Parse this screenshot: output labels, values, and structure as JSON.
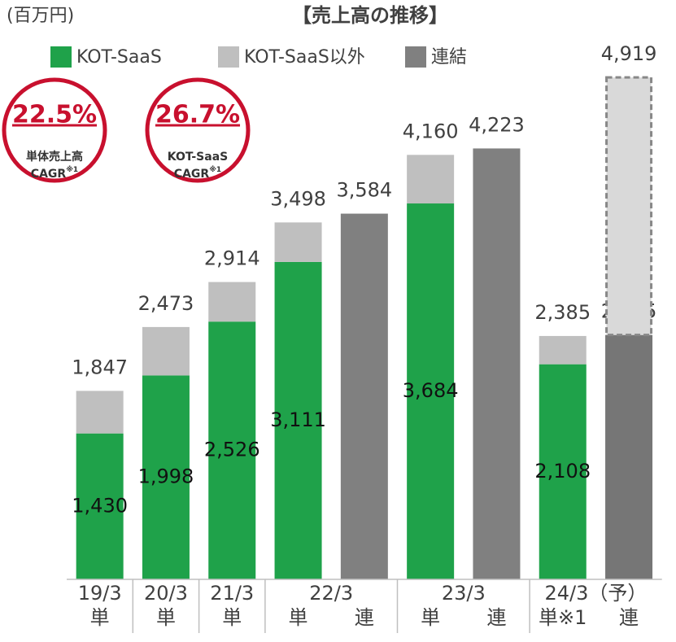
{
  "chart_data": {
    "type": "bar",
    "title": "【売上高の推移】",
    "unit": "(百万円)",
    "categories": [
      "単",
      "単",
      "単",
      "単",
      "連",
      "単",
      "連",
      "単※1",
      "連"
    ],
    "period_labels": [
      "19/3",
      "20/3",
      "21/3",
      "22/3",
      null,
      "23/3",
      null,
      "24/3（予）",
      null
    ],
    "series": [
      {
        "name": "KOT-SaaS",
        "color": "#1fa24a",
        "values": [
          1430,
          1998,
          2526,
          3111,
          null,
          3684,
          null,
          2108,
          null
        ],
        "value_labels": [
          "1,430",
          "1,998",
          "2,526",
          "3,111",
          null,
          "3,684",
          null,
          "2,108",
          null
        ]
      },
      {
        "name": "KOT-SaaS以外",
        "color": "#bfbfbf",
        "values": [
          417,
          475,
          388,
          387,
          null,
          476,
          null,
          277,
          null
        ]
      },
      {
        "name": "連結",
        "color": "#808080",
        "values": [
          null,
          null,
          null,
          null,
          3584,
          null,
          4223,
          null,
          2395
        ],
        "value_labels": [
          null,
          null,
          null,
          null,
          null,
          null,
          null,
          null,
          "2,395"
        ]
      }
    ],
    "forecast": {
      "color": "#d9d9d9",
      "values": [
        null,
        null,
        null,
        null,
        null,
        null,
        null,
        null,
        2524
      ]
    },
    "totals": [
      1847,
      2473,
      2914,
      3498,
      3584,
      4160,
      4223,
      2385,
      4919
    ],
    "total_labels": [
      "1,847",
      "2,473",
      "2,914",
      "3,498",
      "3,584",
      "4,160",
      "4,223",
      "2,385",
      "4,919"
    ],
    "ylim": [
      0,
      5000
    ],
    "badges": [
      {
        "headline": "22.5%",
        "line": "単体売上高",
        "cagr": "CAGR",
        "sup": "※1"
      },
      {
        "headline": "26.7%",
        "line": "KOT-SaaS",
        "cagr": "CAGR",
        "sup": "※1"
      }
    ]
  }
}
